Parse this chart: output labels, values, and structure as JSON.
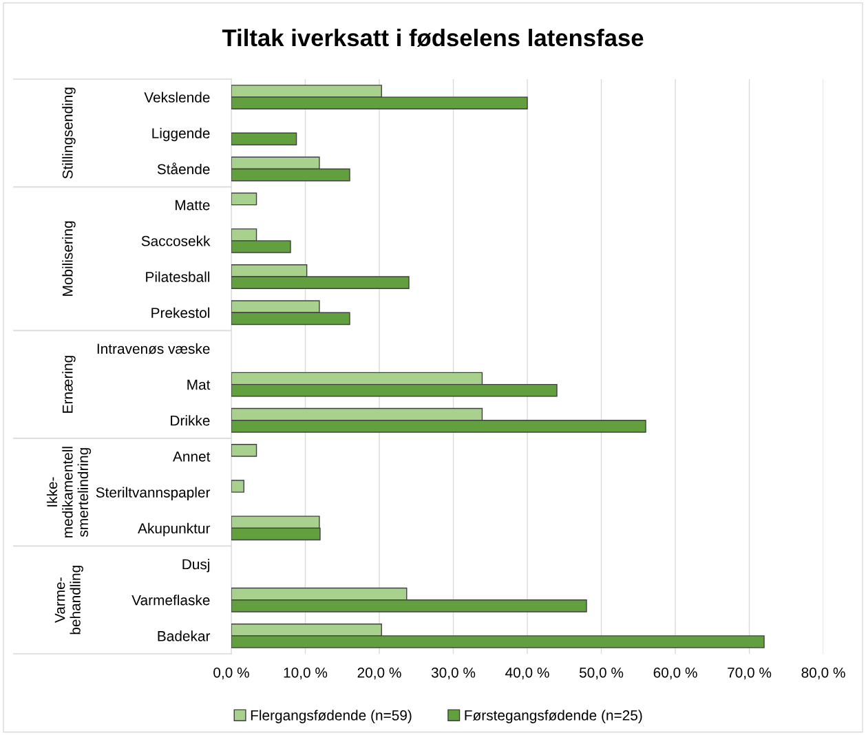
{
  "chart_data": {
    "type": "bar",
    "orientation": "horizontal",
    "title": "Tiltak iverksatt i fødselens latensfase",
    "categories": [
      "Vekslende",
      "Liggende",
      "Stående",
      "Matte",
      "Saccosekk",
      "Pilatesball",
      "Prekestol",
      "Intravenøs væske",
      "Mat",
      "Drikke",
      "Annet",
      "Steriltvannspapler",
      "Akupunktur",
      "Dusj",
      "Varmeflaske",
      "Badekar"
    ],
    "series": [
      {
        "name": "Flergangsfødende (n=59)",
        "color": "#a9d18e",
        "values": [
          20.3,
          0,
          11.9,
          3.4,
          3.4,
          10.2,
          11.9,
          0,
          33.9,
          33.9,
          3.4,
          1.7,
          11.9,
          0,
          23.7,
          20.3
        ]
      },
      {
        "name": "Førstegangsfødende (n=25)",
        "color": "#62a03f",
        "values": [
          40,
          8.8,
          16,
          0,
          8,
          24,
          16,
          0,
          44,
          56,
          0,
          0,
          12,
          0,
          48,
          72
        ]
      }
    ],
    "xlim": [
      0,
      80
    ],
    "xticks": [
      {
        "value": 0,
        "label": "0,0 %"
      },
      {
        "value": 10,
        "label": "10,0 %"
      },
      {
        "value": 20,
        "label": "20,0 %"
      },
      {
        "value": 30,
        "label": "30,0 %"
      },
      {
        "value": 40,
        "label": "40,0 %"
      },
      {
        "value": 50,
        "label": "50,0 %"
      },
      {
        "value": 60,
        "label": "60,0 %"
      },
      {
        "value": 70,
        "label": "70,0 %"
      },
      {
        "value": 80,
        "label": "80,0 %"
      }
    ],
    "annotations": [
      "Stillingsending",
      "Mobilisering",
      "Ernæring",
      "Ikke-\nmedikamentell\nsmertelindring",
      "Varme-\nbehandling"
    ],
    "grid": "x",
    "legend": "bottom"
  }
}
